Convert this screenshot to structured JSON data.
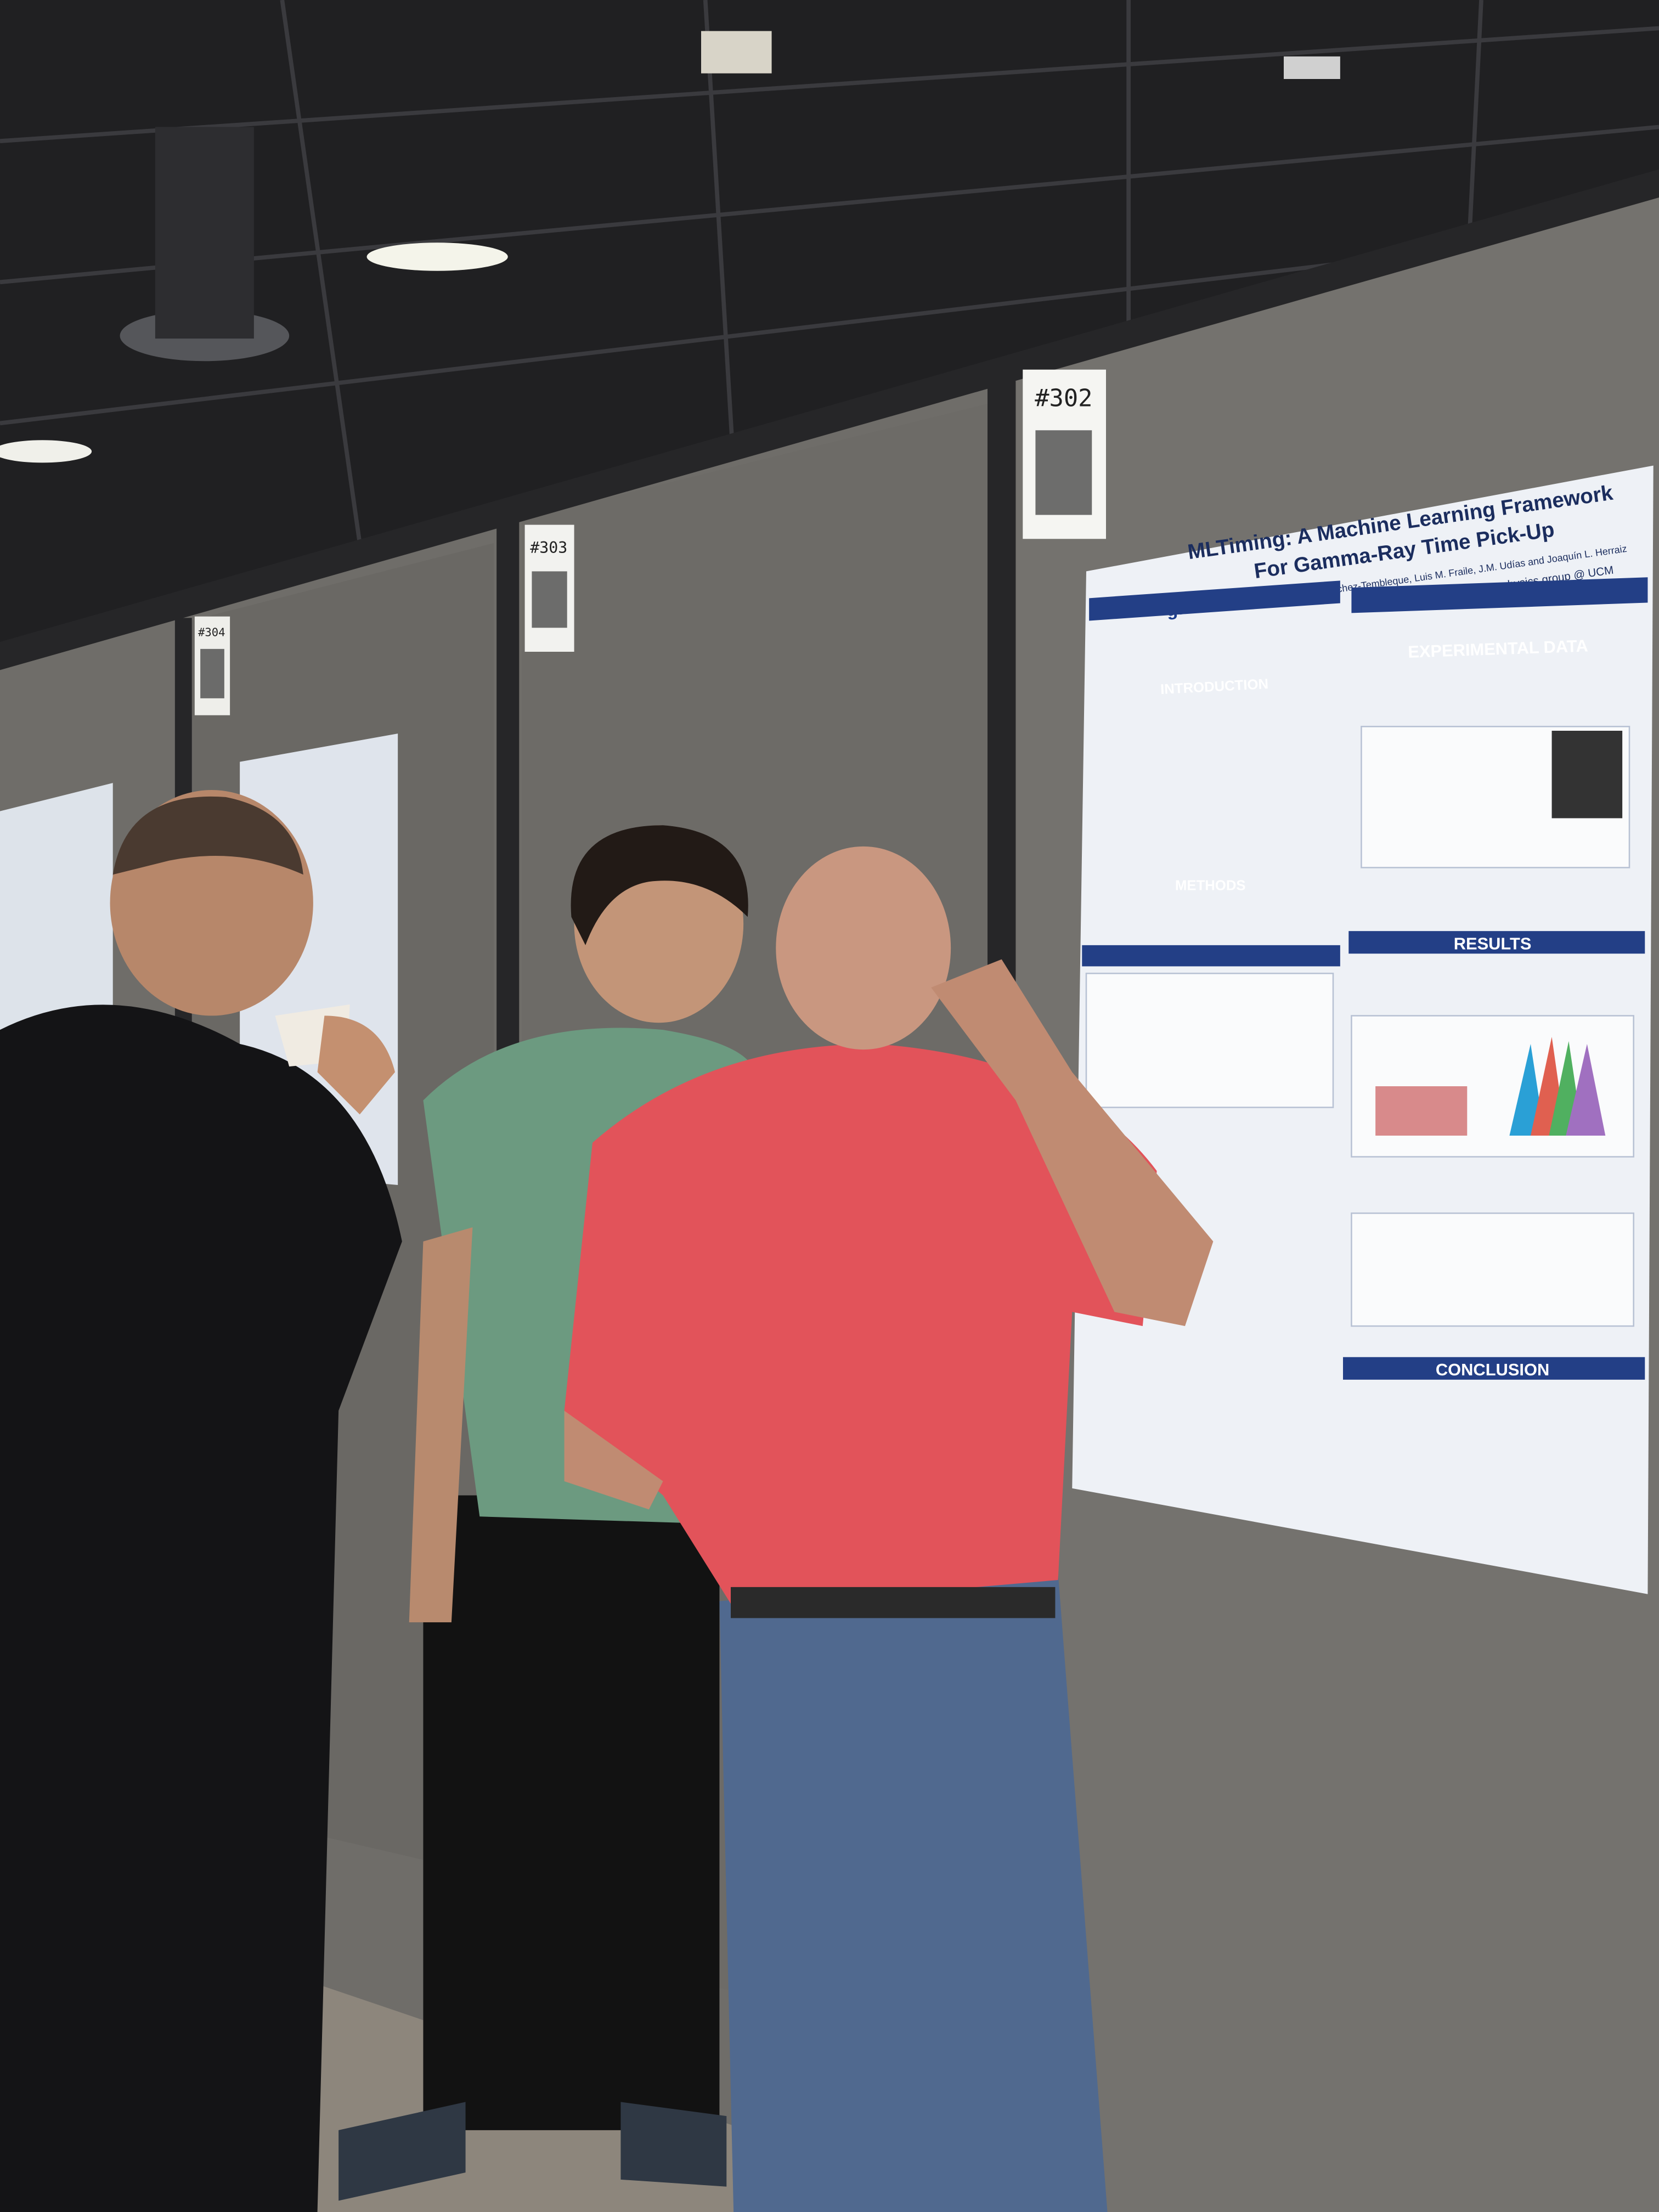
{
  "signs": [
    "#302",
    "#303",
    "#304"
  ],
  "poster": {
    "title_lines": [
      "MLTiming: A Machine Learning Framework",
      "For Gamma-Ray Time Pick-Up"
    ],
    "authors": "José A. Avellaneda, Víctor Sánchez-Tembleque, Luis M. Fraile, J.M. Udías and Joaquín L. Herraiz",
    "group": "Nuclear physics group @ UCM",
    "logo": "gfn",
    "sections": [
      "INTRODUCTION",
      "METHODS",
      "EXPERIMENTAL DATA",
      "RESULTS",
      "CONCLUSION"
    ]
  }
}
